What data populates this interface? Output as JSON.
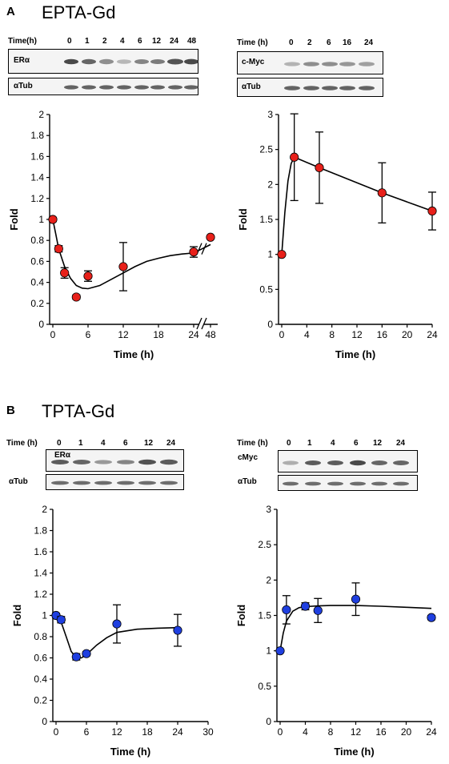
{
  "panels": [
    {
      "letter": "A",
      "title": "EPTA-Gd"
    },
    {
      "letter": "B",
      "title": "TPTA-Gd"
    }
  ],
  "blots": [
    {
      "time_label": "Time(h)",
      "times": [
        "0",
        "1",
        "2",
        "4",
        "6",
        "12",
        "24",
        "48"
      ],
      "protein": "ERα",
      "control": "αTub"
    },
    {
      "time_label": "Time (h)",
      "times": [
        "0",
        "2",
        "6",
        "16",
        "24"
      ],
      "protein": "c-Myc",
      "control": "αTub"
    },
    {
      "time_label": "Time (h)",
      "times": [
        "0",
        "1",
        "4",
        "6",
        "12",
        "24"
      ],
      "protein": "ERα",
      "control": "αTub"
    },
    {
      "time_label": "Time (h)",
      "times": [
        "0",
        "1",
        "4",
        "6",
        "12",
        "24"
      ],
      "protein": "cMyc",
      "control": "αTub"
    }
  ],
  "chart_data": [
    {
      "type": "scatter",
      "xlabel": "Time (h)",
      "ylabel": "Fold",
      "ylim": [
        0,
        2
      ],
      "yticks": [
        "0",
        "0.2",
        "0.4",
        "0.6",
        "0.8",
        "1",
        "1.2",
        "1.4",
        "1.6",
        "1.8",
        "2"
      ],
      "xticks": [
        "0",
        "6",
        "12",
        "18",
        "24",
        "48"
      ],
      "axis_break": true,
      "marker_color": "#e8201a",
      "x": [
        0,
        1,
        2,
        4,
        6,
        12,
        24,
        48
      ],
      "y": [
        1.0,
        0.72,
        0.49,
        0.26,
        0.46,
        0.55,
        0.69,
        0.83
      ],
      "error": [
        0.02,
        0.03,
        0.05,
        0.02,
        0.05,
        0.23,
        0.05,
        0.0
      ],
      "fit_x": [
        0,
        0.5,
        1,
        2,
        3,
        4,
        5,
        6,
        8,
        10,
        12,
        14,
        16,
        18,
        20,
        22,
        24,
        36,
        48
      ],
      "fit_y": [
        1.0,
        0.86,
        0.72,
        0.55,
        0.44,
        0.37,
        0.345,
        0.34,
        0.37,
        0.43,
        0.49,
        0.55,
        0.6,
        0.63,
        0.655,
        0.67,
        0.68,
        0.72,
        0.76
      ]
    },
    {
      "type": "scatter",
      "xlabel": "Time (h)",
      "ylabel": "Fold",
      "ylim": [
        0,
        3
      ],
      "yticks": [
        "0",
        "0.5",
        "1",
        "1.5",
        "2",
        "2.5",
        "3"
      ],
      "xticks": [
        "0",
        "4",
        "8",
        "12",
        "16",
        "20",
        "24"
      ],
      "xlim": [
        0,
        24
      ],
      "marker_color": "#e8201a",
      "x": [
        0,
        2,
        6,
        16,
        24
      ],
      "y": [
        1.0,
        2.39,
        2.24,
        1.88,
        1.62
      ],
      "error": [
        0.02,
        0.62,
        0.51,
        0.43,
        0.27
      ],
      "fit_x": [
        0,
        0.5,
        1,
        1.5,
        2,
        6,
        16,
        24
      ],
      "fit_y": [
        1.0,
        1.6,
        2.05,
        2.3,
        2.39,
        2.24,
        1.88,
        1.62
      ]
    },
    {
      "type": "scatter",
      "xlabel": "Time (h)",
      "ylabel": "Fold",
      "ylim": [
        0,
        2
      ],
      "yticks": [
        "0",
        "0.2",
        "0.4",
        "0.6",
        "0.8",
        "1",
        "1.2",
        "1.4",
        "1.6",
        "1.8",
        "2"
      ],
      "xticks": [
        "0",
        "6",
        "12",
        "18",
        "24",
        "30"
      ],
      "xlim": [
        0,
        30
      ],
      "marker_color": "#1f3fe0",
      "x": [
        0,
        1,
        4,
        6,
        12,
        24
      ],
      "y": [
        1.0,
        0.96,
        0.61,
        0.64,
        0.92,
        0.86
      ],
      "error": [
        0.02,
        0.03,
        0.03,
        0.02,
        0.18,
        0.15
      ],
      "fit_x": [
        0,
        1,
        2,
        3,
        4,
        5,
        6,
        8,
        10,
        12,
        16,
        20,
        24
      ],
      "fit_y": [
        1.0,
        0.94,
        0.8,
        0.66,
        0.6,
        0.6,
        0.63,
        0.72,
        0.79,
        0.84,
        0.87,
        0.88,
        0.885
      ]
    },
    {
      "type": "scatter",
      "xlabel": "Time (h)",
      "ylabel": "Fold",
      "ylim": [
        0,
        3
      ],
      "yticks": [
        "0",
        "0.5",
        "1",
        "1.5",
        "2",
        "2.5",
        "3"
      ],
      "xticks": [
        "0",
        "4",
        "8",
        "12",
        "16",
        "20",
        "24"
      ],
      "xlim": [
        0,
        24
      ],
      "marker_color": "#1f3fe0",
      "x": [
        0,
        1,
        4,
        6,
        12,
        24
      ],
      "y": [
        1.0,
        1.58,
        1.63,
        1.57,
        1.73,
        1.47
      ],
      "error": [
        0.02,
        0.2,
        0.05,
        0.17,
        0.23,
        0.03
      ],
      "fit_x": [
        0,
        0.5,
        1,
        2,
        3,
        4,
        6,
        8,
        12,
        16,
        20,
        24
      ],
      "fit_y": [
        1.0,
        1.25,
        1.42,
        1.56,
        1.61,
        1.625,
        1.635,
        1.64,
        1.64,
        1.63,
        1.615,
        1.6
      ]
    }
  ]
}
